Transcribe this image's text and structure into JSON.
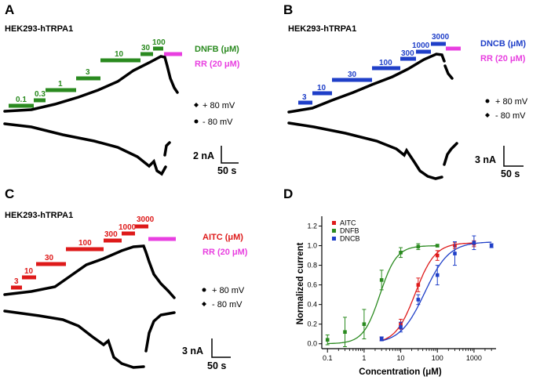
{
  "colors": {
    "dnfb": "#2a8a1f",
    "dncb": "#1f3fc8",
    "aitc": "#de1a1a",
    "rr": "#e83fe0",
    "trace": "#000000"
  },
  "panels": {
    "A": {
      "label": "A",
      "cell": "HEK293-hTRPA1",
      "legend_top": "DNFB (μM)",
      "legend_rr": "RR (20 μM)",
      "concentrations": [
        "0.1",
        "0.3",
        "1",
        "3",
        "10",
        "30",
        "100"
      ],
      "plus_label": "+ 80 mV",
      "minus_label": "- 80 mV",
      "scale_current": "2 nA",
      "scale_time": "50 s"
    },
    "B": {
      "label": "B",
      "cell": "HEK293-hTRPA1",
      "legend_top": "DNCB (μM)",
      "legend_rr": "RR (20 μM)",
      "concentrations": [
        "3",
        "10",
        "30",
        "100",
        "300",
        "1000",
        "3000"
      ],
      "plus_label": "+ 80 mV",
      "minus_label": "- 80 mV",
      "scale_current": "3 nA",
      "scale_time": "50 s"
    },
    "C": {
      "label": "C",
      "cell": "HEK293-hTRPA1",
      "legend_top": "AITC (μM)",
      "legend_rr": "RR (20 μM)",
      "concentrations": [
        "3",
        "10",
        "30",
        "100",
        "300",
        "1000",
        "3000"
      ],
      "plus_label": "+ 80 mV",
      "minus_label": "- 80 mV",
      "scale_current": "3 nA",
      "scale_time": "50 s"
    },
    "D": {
      "label": "D"
    }
  },
  "chart_data": {
    "type": "scatter",
    "title": "",
    "xlabel": "Concentration (μM)",
    "ylabel": "Normalized current",
    "xscale": "log",
    "xlim": [
      0.07,
      4000
    ],
    "ylim": [
      -0.05,
      1.3
    ],
    "xticks": [
      "0.1",
      "1",
      "10",
      "100",
      "1000"
    ],
    "yticks": [
      "0.0",
      "0.2",
      "0.4",
      "0.6",
      "0.8",
      "1.0",
      "1.2"
    ],
    "legend_position": "top-left",
    "series": [
      {
        "name": "AITC",
        "color": "#de1a1a",
        "x": [
          3,
          10,
          30,
          100,
          300,
          1000
        ],
        "y": [
          0.05,
          0.2,
          0.6,
          0.9,
          1.0,
          1.02
        ],
        "err": [
          0.02,
          0.05,
          0.07,
          0.05,
          0.03,
          0.03
        ],
        "fit": {
          "ec50": 25,
          "hill": 1.6,
          "top": 1.03
        }
      },
      {
        "name": "DNFB",
        "color": "#2a8a1f",
        "x": [
          0.1,
          0.3,
          1,
          3,
          10,
          30,
          100
        ],
        "y": [
          0.04,
          0.12,
          0.2,
          0.65,
          0.93,
          0.99,
          1.0
        ],
        "err": [
          0.05,
          0.15,
          0.15,
          0.1,
          0.05,
          0.03,
          0.01
        ],
        "fit": {
          "ec50": 2.7,
          "hill": 1.9,
          "top": 1.0
        }
      },
      {
        "name": "DNCB",
        "color": "#1f3fc8",
        "x": [
          3,
          10,
          30,
          100,
          300,
          1000,
          3000
        ],
        "y": [
          0.05,
          0.17,
          0.45,
          0.7,
          0.92,
          1.03,
          1.0
        ],
        "err": [
          0.02,
          0.05,
          0.05,
          0.1,
          0.12,
          0.07,
          0.02
        ],
        "fit": {
          "ec50": 45,
          "hill": 1.3,
          "top": 1.04
        }
      }
    ]
  }
}
